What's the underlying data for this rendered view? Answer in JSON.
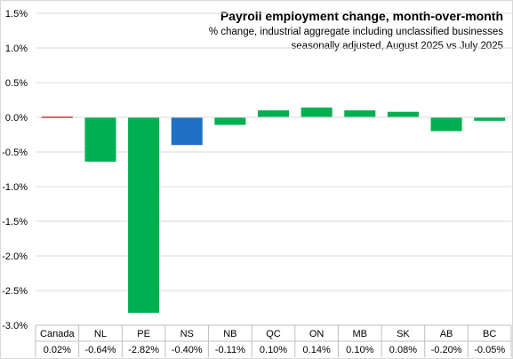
{
  "chart_data": {
    "type": "bar",
    "title": "Payroll employment change, month-over-month",
    "subtitle_lines": [
      "% change, industrial aggregate  including unclassified businesses",
      "seasonally adjusted, August 2025 vs July 2025"
    ],
    "categories": [
      "Canada",
      "NL",
      "PE",
      "NS",
      "NB",
      "QC",
      "ON",
      "MB",
      "SK",
      "AB",
      "BC"
    ],
    "values": [
      0.02,
      -0.64,
      -2.82,
      -0.4,
      -0.11,
      0.1,
      0.14,
      0.1,
      0.08,
      -0.2,
      -0.05
    ],
    "value_labels": [
      "0.02%",
      "-0.64%",
      "-2.82%",
      "-0.40%",
      "-0.11%",
      "0.10%",
      "0.14%",
      "0.10%",
      "0.08%",
      "-0.20%",
      "-0.05%"
    ],
    "bar_colors": [
      "#c00000",
      "#00b050",
      "#00b050",
      "#1f6fc4",
      "#00b050",
      "#00b050",
      "#00b050",
      "#00b050",
      "#00b050",
      "#00b050",
      "#00b050"
    ],
    "ylim": [
      -3.0,
      1.5
    ],
    "yticks": [
      1.5,
      1.0,
      0.5,
      0.0,
      -0.5,
      -1.0,
      -1.5,
      -2.0,
      -2.5,
      -3.0
    ],
    "ytick_labels": [
      "1.5%",
      "1.0%",
      "0.5%",
      "0.0%",
      "-0.5%",
      "-1.0%",
      "-1.5%",
      "-2.0%",
      "-2.5%",
      "-3.0%"
    ],
    "grid": true,
    "legend": "none"
  }
}
